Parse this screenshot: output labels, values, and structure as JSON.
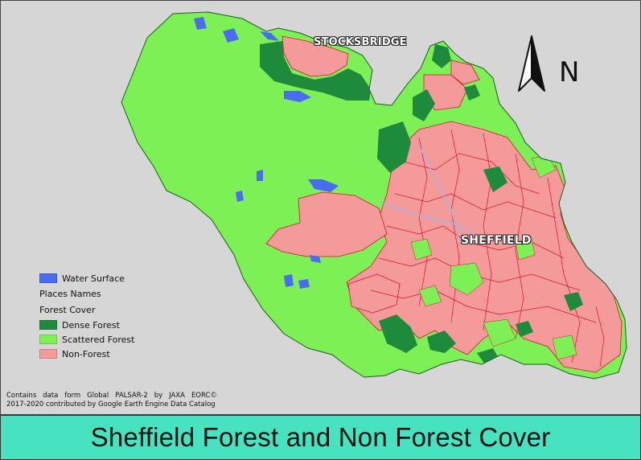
{
  "map": {
    "places": {
      "stocksbridge": "STOCKSBRIDGE",
      "sheffield": "SHEFFIELD"
    },
    "north_arrow": {
      "letter": "N",
      "icon": "north-arrow-icon"
    },
    "legend": {
      "water_label": "Water Surface",
      "places_label": "Places Names",
      "forest_heading": "Forest Cover",
      "items": [
        {
          "label": "Dense Forest",
          "color": "#1e8a3c"
        },
        {
          "label": "Scattered Forest",
          "color": "#7df056"
        },
        {
          "label": "Non-Forest",
          "color": "#f49a9a"
        }
      ],
      "water_color": "#4a6cf5"
    },
    "credit": {
      "line1_words": [
        "Contains",
        "data",
        "form",
        "Global",
        "PALSAR-2",
        "by",
        "JAXA",
        "EORC©"
      ],
      "line2": "2017-2020 contributed by Google Earth Engine Data Catalog"
    },
    "colors": {
      "background": "#d6d6d6",
      "boundary": "#1b5e20",
      "non_forest_boundary": "#e0102a"
    }
  },
  "title": "Sheffield Forest and Non Forest Cover"
}
